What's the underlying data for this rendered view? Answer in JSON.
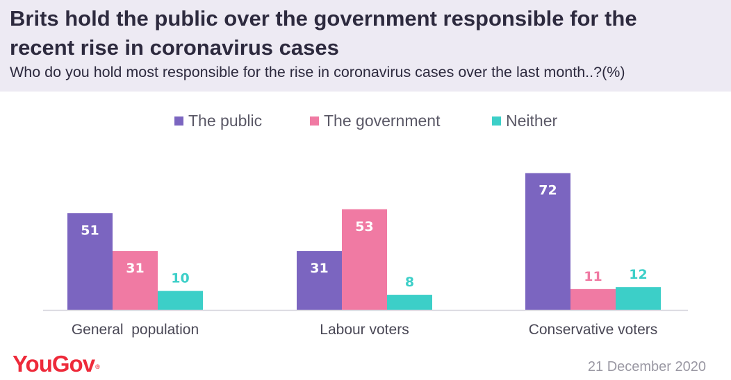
{
  "header": {
    "title": "Brits hold the public over the government responsible for the recent rise in coronavirus cases",
    "subtitle": "Who do you hold most responsible for the rise in coronavirus cases over the last month..?(%)"
  },
  "footer": {
    "logo": "YouGov",
    "date": "21 December 2020"
  },
  "chart_data": {
    "type": "bar",
    "title": "Brits hold the public over the government responsible for the recent rise in coronavirus cases",
    "subtitle": "Who do you hold most responsible for the rise in coronavirus cases over the last month..?(%)",
    "categories": [
      "General  population",
      "Labour voters",
      "Conservative voters"
    ],
    "series": [
      {
        "name": "The public",
        "color": "#7b65c0",
        "values": [
          51,
          31,
          72
        ]
      },
      {
        "name": "The government",
        "color": "#f07aa3",
        "values": [
          31,
          53,
          11
        ]
      },
      {
        "name": "Neither",
        "color": "#3ccfc8",
        "values": [
          10,
          8,
          12
        ]
      }
    ],
    "label_colors_inside": "#ffffff",
    "ylim": [
      0,
      72
    ],
    "xlabel": "",
    "ylabel": "",
    "grid": false,
    "legend_position": "top-center"
  }
}
